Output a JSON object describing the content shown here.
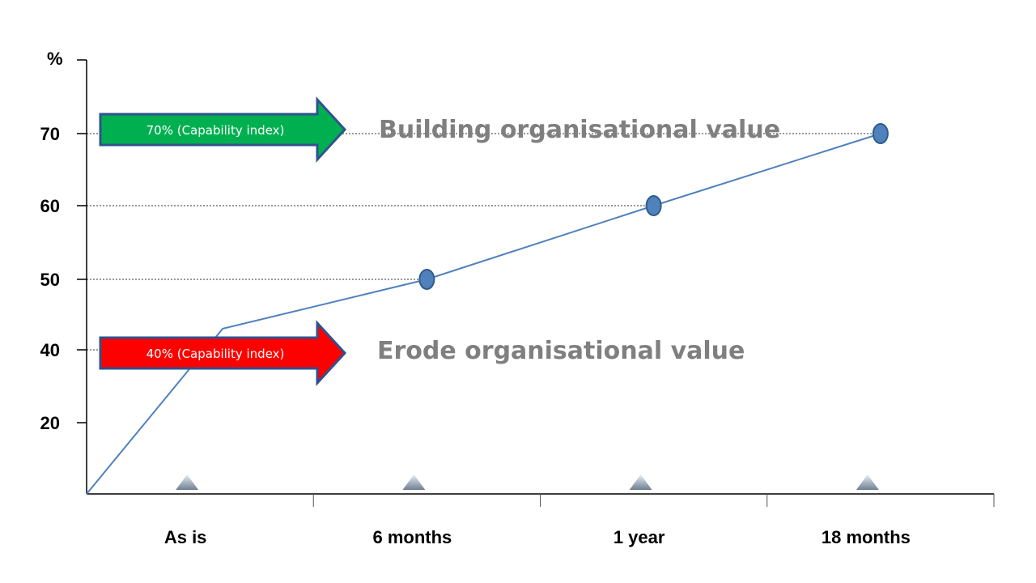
{
  "chart_data": {
    "type": "line",
    "ylabel": "%",
    "y_ticks": [
      20,
      40,
      50,
      60,
      70
    ],
    "categories": [
      "As is",
      "6 months",
      "1 year",
      "18 months"
    ],
    "series": [
      {
        "values": [
          0,
          43,
          50,
          60,
          70
        ],
        "x": [
          0,
          0.6,
          1.5,
          2.5,
          3.5
        ]
      }
    ],
    "markers_at": [
      1.5,
      2.5,
      3.5
    ],
    "reference_lines": [
      40,
      50,
      60,
      70
    ],
    "grid": false,
    "annotations": {
      "high_arrow": {
        "label": "70% (Capability index)",
        "value": 70,
        "color": "#00b050"
      },
      "low_arrow": {
        "label": "40% (Capability index)",
        "value": 40,
        "color": "#ff0000"
      },
      "high_zone": "Building organisational value",
      "low_zone": "Erode organisational value"
    },
    "colors": {
      "line": "#4f81bd",
      "marker": "#4f81bd",
      "marker_edge": "#2e5c8a",
      "arrow_border": "#2f528f"
    }
  }
}
